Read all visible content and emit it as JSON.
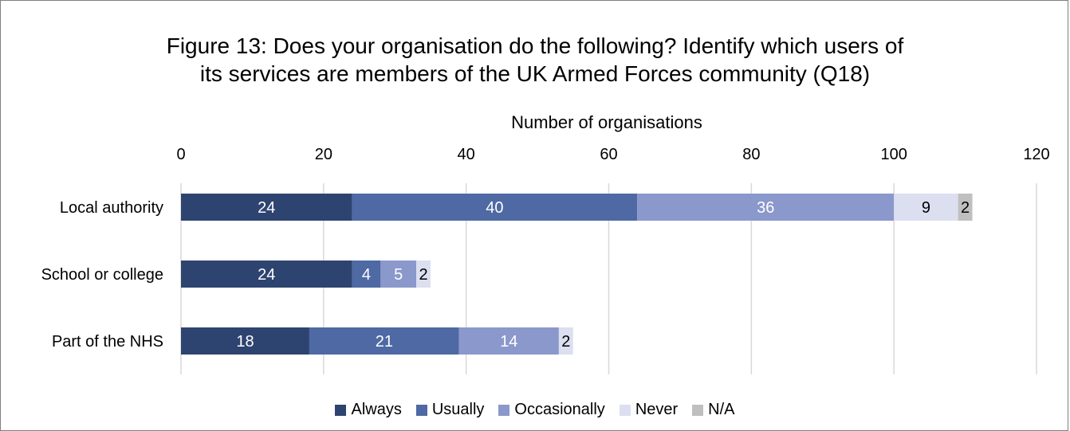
{
  "chart_data": {
    "type": "bar",
    "orientation": "horizontal",
    "stacked": true,
    "title_lines": [
      "Figure 13: Does your organisation do the following? Identify which users of",
      "its services are members of the UK Armed Forces community (Q18)"
    ],
    "xlabel": "Number of organisations",
    "ylabel": "",
    "xlim": [
      0,
      120
    ],
    "x_ticks": [
      "0",
      "20",
      "40",
      "60",
      "80",
      "100",
      "120"
    ],
    "x_axis_position": "top",
    "grid": true,
    "legend_position": "bottom",
    "categories": [
      "Local authority",
      "School or college",
      "Part of the NHS"
    ],
    "series": [
      {
        "name": "Always",
        "color": "#2e4470",
        "label_color": "#ffffff",
        "values": [
          24,
          24,
          18
        ]
      },
      {
        "name": "Usually",
        "color": "#4e69a3",
        "label_color": "#ffffff",
        "values": [
          40,
          4,
          21
        ]
      },
      {
        "name": "Occasionally",
        "color": "#8a98cb",
        "label_color": "#ffffff",
        "values": [
          36,
          5,
          14
        ]
      },
      {
        "name": "Never",
        "color": "#dcdff0",
        "label_color": "#000000",
        "values": [
          9,
          2,
          2
        ]
      },
      {
        "name": "N/A",
        "color": "#bfbfbf",
        "label_color": "#000000",
        "values": [
          2,
          0,
          0
        ]
      }
    ]
  }
}
